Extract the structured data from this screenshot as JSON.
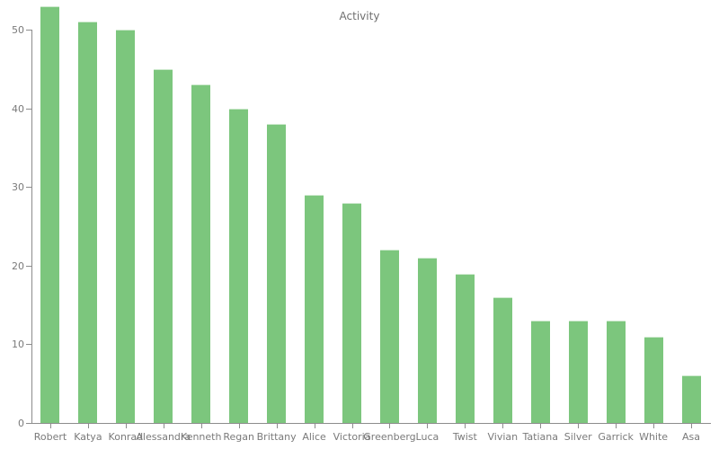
{
  "chart_data": {
    "type": "bar",
    "title": "Activity",
    "xlabel": "",
    "ylabel": "",
    "categories": [
      "Robert",
      "Katya",
      "Konrad",
      "Alessandra",
      "Kenneth",
      "Regan",
      "Brittany",
      "Alice",
      "Victoria",
      "Greenberg",
      "Luca",
      "Twist",
      "Vivian",
      "Tatiana",
      "Silver",
      "Garrick",
      "White",
      "Asa"
    ],
    "values": [
      53,
      51,
      50,
      45,
      43,
      40,
      38,
      29,
      28,
      22,
      21,
      19,
      16,
      13,
      13,
      13,
      11,
      6
    ],
    "ylim": [
      0,
      54
    ],
    "yticks": [
      0,
      10,
      20,
      30,
      40,
      50
    ],
    "grid": false,
    "legend": false,
    "colors": {
      "bar_fill": "#7cc67d",
      "bar_top_highlight": "#cde9cd",
      "axis_line": "#8c8c8c",
      "tick_label": "#7a7a7a",
      "title": "#6f6f6f",
      "background": "#ffffff"
    }
  }
}
